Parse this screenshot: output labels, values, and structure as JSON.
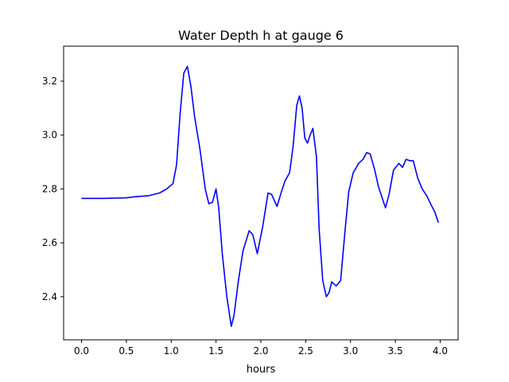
{
  "chart_data": {
    "type": "line",
    "title": "Water Depth h at gauge 6",
    "xlabel": "hours",
    "ylabel": "",
    "xlim": [
      -0.2,
      4.2
    ],
    "ylim": [
      2.24,
      3.33
    ],
    "xticks": [
      0.0,
      0.5,
      1.0,
      1.5,
      2.0,
      2.5,
      3.0,
      3.5,
      4.0
    ],
    "xtick_labels": [
      "0.0",
      "0.5",
      "1.0",
      "1.5",
      "2.0",
      "2.5",
      "3.0",
      "3.5",
      "4.0"
    ],
    "yticks": [
      2.4,
      2.6,
      2.8,
      3.0,
      3.2
    ],
    "ytick_labels": [
      "2.4",
      "2.6",
      "2.8",
      "3.0",
      "3.2"
    ],
    "grid": false,
    "series": [
      {
        "color": "#0000ff",
        "x": [
          0.0,
          0.25,
          0.5,
          0.6,
          0.75,
          0.87,
          0.95,
          1.02,
          1.06,
          1.1,
          1.14,
          1.18,
          1.22,
          1.26,
          1.32,
          1.38,
          1.42,
          1.46,
          1.5,
          1.53,
          1.57,
          1.62,
          1.67,
          1.7,
          1.75,
          1.8,
          1.87,
          1.91,
          1.96,
          2.02,
          2.08,
          2.12,
          2.18,
          2.23,
          2.27,
          2.32,
          2.36,
          2.4,
          2.43,
          2.46,
          2.49,
          2.52,
          2.55,
          2.58,
          2.62,
          2.65,
          2.69,
          2.73,
          2.76,
          2.79,
          2.84,
          2.89,
          2.94,
          2.98,
          3.03,
          3.09,
          3.14,
          3.18,
          3.22,
          3.27,
          3.31,
          3.35,
          3.39,
          3.43,
          3.48,
          3.54,
          3.58,
          3.62,
          3.66,
          3.7,
          3.75,
          3.8,
          3.85,
          3.9,
          3.94,
          3.98
        ],
        "y": [
          2.765,
          2.765,
          2.767,
          2.771,
          2.775,
          2.785,
          2.8,
          2.82,
          2.89,
          3.08,
          3.23,
          3.255,
          3.18,
          3.07,
          2.95,
          2.8,
          2.745,
          2.75,
          2.8,
          2.73,
          2.56,
          2.4,
          2.29,
          2.33,
          2.46,
          2.57,
          2.645,
          2.63,
          2.56,
          2.66,
          2.785,
          2.78,
          2.735,
          2.79,
          2.83,
          2.86,
          2.96,
          3.11,
          3.145,
          3.1,
          2.99,
          2.97,
          3.0,
          3.025,
          2.92,
          2.65,
          2.46,
          2.4,
          2.415,
          2.455,
          2.44,
          2.46,
          2.65,
          2.79,
          2.86,
          2.895,
          2.91,
          2.935,
          2.93,
          2.87,
          2.81,
          2.77,
          2.73,
          2.78,
          2.87,
          2.895,
          2.88,
          2.91,
          2.905,
          2.905,
          2.84,
          2.8,
          2.775,
          2.74,
          2.715,
          2.675
        ]
      }
    ]
  }
}
